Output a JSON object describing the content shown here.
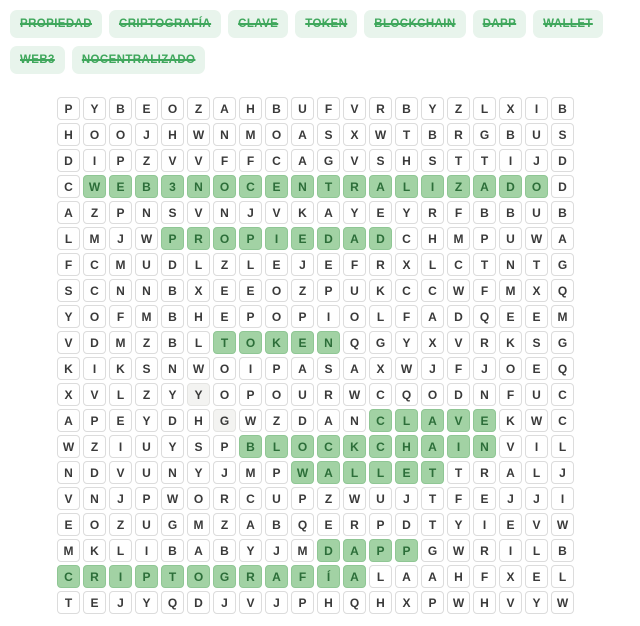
{
  "words": [
    {
      "label": "PROPIEDAD",
      "found": true
    },
    {
      "label": "CRIPTOGRAFÍA",
      "found": true
    },
    {
      "label": "CLAVE",
      "found": true
    },
    {
      "label": "TOKEN",
      "found": true
    },
    {
      "label": "BLOCKCHAIN",
      "found": true
    },
    {
      "label": "DAPP",
      "found": true
    },
    {
      "label": "WALLET",
      "found": true
    },
    {
      "label": "WEB3",
      "found": true
    },
    {
      "label": "NOCENTRALIZADO",
      "found": true
    }
  ],
  "grid": {
    "rows": [
      "PYBEOZAHBUFVRBYZLXIB",
      "HOOJHWNMOASXWTBRGBUS",
      "DIPZVVFFCAGVSHSTTIJD",
      "CWEB3NOCENTRALIZADOD",
      "AZPNSVNJVKAYEYRFBBUB",
      "LMJWPROPIEDADCHMPUWA",
      "FCMUDLZLEJEFRXLCTNTG",
      "SCNNBXEEOZPUKCCWFMXQ",
      "YOFMBHEPOPIOLFADQEEM",
      "VDMZBLTOKENQGYXVRKSG",
      "KIKSNWOIPASAXWJFJOEQ",
      "XVLZYYOPOURWCQODNFUC",
      "APEYDHGWZDANCLAVEKWC",
      "WZIUYSPBLOCKCHAINVIL",
      "NDVUNYJMPWALLETTRALJ",
      "VNJPWORCUPZWUJTFEJJI",
      "EOZUGMZABQERPDTYIEVW",
      "MKLIBABYJMDAPPGWRILB",
      "CRIPTOGRAFÍALAAHFXEL",
      "TEJYQDJVJPHQHXPWHVYW"
    ],
    "highlights": [
      {
        "word": "WEB3",
        "row": 4,
        "col_start": 2,
        "col_end": 5
      },
      {
        "word": "NOCENTRALIZADO",
        "row": 4,
        "col_start": 6,
        "col_end": 19
      },
      {
        "word": "PROPIEDAD",
        "row": 6,
        "col_start": 5,
        "col_end": 13
      },
      {
        "word": "TOKEN",
        "row": 10,
        "col_start": 7,
        "col_end": 11
      },
      {
        "word": "CLAVE",
        "row": 13,
        "col_start": 13,
        "col_end": 17
      },
      {
        "word": "BLOCKCHAIN",
        "row": 14,
        "col_start": 8,
        "col_end": 17
      },
      {
        "word": "WALLET",
        "row": 15,
        "col_start": 10,
        "col_end": 15
      },
      {
        "word": "DAPP",
        "row": 18,
        "col_start": 11,
        "col_end": 14
      },
      {
        "word": "CRIPTOGRAFÍA",
        "row": 19,
        "col_start": 1,
        "col_end": 12
      }
    ],
    "dim_cells": [
      [
        12,
        6
      ],
      [
        13,
        7
      ]
    ]
  },
  "colors": {
    "chip_bg": "#e8f4ec",
    "chip_text": "#3fa75c",
    "cell_border": "#dcdcdc",
    "cell_text": "#3a3a3a",
    "highlight_bg": "#a2d2a4",
    "highlight_border": "#8fc694",
    "highlight_text": "#2c6e39"
  }
}
